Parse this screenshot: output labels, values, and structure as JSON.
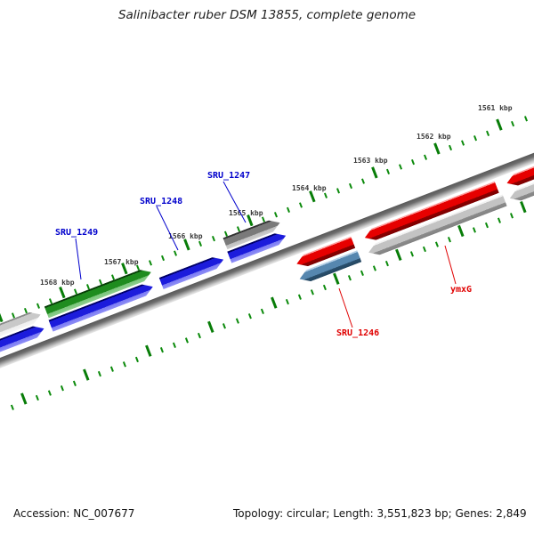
{
  "title": "Salinibacter ruber DSM 13855, complete genome",
  "footer": {
    "accession": "Accession: NC_007677",
    "topology": "Topology: circular; Length: 3,551,823 bp; Genes: 2,849"
  },
  "ruler": {
    "unit": "kbp",
    "minor_tick_interval_bp": 200,
    "major_tick_interval_bp": 1000,
    "major_labels": [
      {
        "text": "1561 kbp"
      },
      {
        "text": "1562 kbp"
      },
      {
        "text": "1563 kbp"
      },
      {
        "text": "1564 kbp"
      },
      {
        "text": "1565 kbp"
      },
      {
        "text": "1566 kbp"
      },
      {
        "text": "1567 kbp"
      },
      {
        "text": "1568 kbp"
      }
    ],
    "tick_color": "#0b8a0b",
    "label_color": "#3a3a3a"
  },
  "gene_labels": [
    {
      "text": "SRU_1249",
      "color": "#0000cc",
      "points_to": "green gene, top outer lane"
    },
    {
      "text": "SRU_1248",
      "color": "#0000cc",
      "points_to": "blue gene, top inner lane"
    },
    {
      "text": "SRU_1247",
      "color": "#0000cc",
      "points_to": "dark gray gene, top outer lane"
    },
    {
      "text": "SRU_1246",
      "color": "#e00000",
      "points_to": "steel blue gene, bottom outer lane"
    },
    {
      "text": "ymxG",
      "color": "#e00000",
      "points_to": "light gray gene, bottom outer lane"
    }
  ],
  "genes": [
    {
      "label": null,
      "color_name": "silver",
      "track": "top-outer",
      "orientation": "right",
      "approx_span_kbp": [
        1568.4,
        1569.8
      ],
      "partial": true
    },
    {
      "label": "SRU_1249",
      "color_name": "green",
      "track": "top-outer",
      "orientation": "right",
      "approx_span_kbp": [
        1566.6,
        1568.3
      ],
      "partial": false
    },
    {
      "label": "SRU_1247",
      "color_name": "dark-gray",
      "track": "top-outer",
      "orientation": "right",
      "approx_span_kbp": [
        1564.6,
        1565.5
      ],
      "partial": false
    },
    {
      "label": null,
      "color_name": "blue",
      "track": "top-inner",
      "orientation": "right",
      "approx_span_kbp": [
        1568.4,
        1569.8
      ],
      "partial": true
    },
    {
      "label": "SRU_1248",
      "color_name": "blue",
      "track": "top-inner",
      "orientation": "right",
      "approx_span_kbp": [
        1566.7,
        1568.3
      ],
      "partial": false
    },
    {
      "label": null,
      "color_name": "blue",
      "track": "top-inner",
      "orientation": "right",
      "approx_span_kbp": [
        1565.6,
        1566.6
      ],
      "partial": false
    },
    {
      "label": null,
      "color_name": "blue",
      "track": "top-inner",
      "orientation": "right",
      "approx_span_kbp": [
        1564.6,
        1565.5
      ],
      "partial": false
    },
    {
      "label": null,
      "color_name": "red",
      "track": "bottom-inner",
      "orientation": "left",
      "approx_span_kbp": [
        1563.7,
        1564.6
      ],
      "partial": false
    },
    {
      "label": null,
      "color_name": "red",
      "track": "bottom-inner",
      "orientation": "left",
      "approx_span_kbp": [
        1561.4,
        1563.5
      ],
      "partial": false
    },
    {
      "label": null,
      "color_name": "red",
      "track": "bottom-inner",
      "orientation": "left",
      "approx_span_kbp": [
        1559.1,
        1561.2
      ],
      "partial": true
    },
    {
      "label": "SRU_1246",
      "color_name": "steel-blue",
      "track": "bottom-outer",
      "orientation": "left",
      "approx_span_kbp": [
        1563.6,
        1564.6
      ],
      "partial": false
    },
    {
      "label": "ymxG",
      "color_name": "light-gray",
      "track": "bottom-outer",
      "orientation": "left",
      "approx_span_kbp": [
        1561.3,
        1563.5
      ],
      "partial": false
    },
    {
      "label": null,
      "color_name": "light-gray",
      "track": "bottom-outer",
      "orientation": "left",
      "approx_span_kbp": [
        1559.1,
        1561.3
      ],
      "partial": true
    }
  ],
  "colors": {
    "backbone": "#8a8a8a",
    "gene_blue": "#1c1cdc",
    "gene_green": "#1f8c1f",
    "gene_dark_gray": "#7a7a7a",
    "gene_silver": "#c9c9c9",
    "gene_red": "#e60000",
    "gene_steel_blue": "#5687af",
    "gene_light_gray": "#c3c3c3"
  }
}
